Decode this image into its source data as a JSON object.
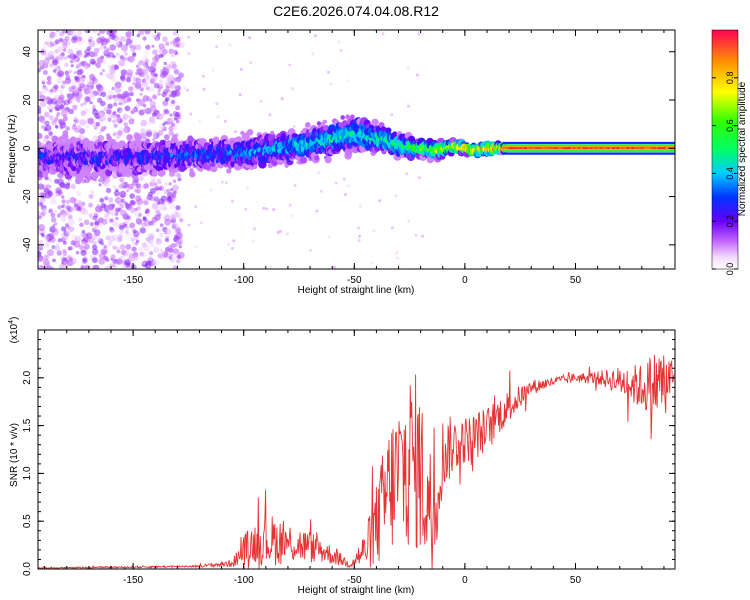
{
  "title": "C2E6.2026.074.04.08.R12",
  "chart_data": [
    {
      "type": "heatmap",
      "name": "spectrogram",
      "xlabel": "Height of straight line (km)",
      "ylabel": "Frequency (Hz)",
      "xlim": [
        -193,
        95
      ],
      "ylim": [
        -50,
        49
      ],
      "xticks": [
        -150,
        -100,
        -50,
        0,
        50
      ],
      "yticks": [
        -40,
        -20,
        0,
        20,
        40
      ],
      "colorbar": {
        "label": "Normalized spectral amplitude",
        "range": [
          0,
          1
        ],
        "ticks": [
          0.0,
          0.2,
          0.4,
          0.6,
          0.8
        ],
        "tick_labels": [
          "0.0",
          "0.2",
          "0.4",
          "0.6",
          "0.8"
        ]
      },
      "trend": {
        "x": [
          -193,
          -150,
          -130,
          -100,
          -75,
          -50,
          -38,
          -28,
          -20,
          -12,
          -5,
          0,
          5,
          10,
          17,
          50,
          95
        ],
        "center_hz": [
          -4,
          -4,
          -3,
          -2,
          1,
          6,
          4,
          1,
          0,
          -1,
          1,
          0,
          -1,
          0,
          0,
          0,
          0
        ],
        "spread_hz": [
          7,
          7,
          6,
          6,
          6,
          7,
          5,
          4,
          3,
          3,
          2,
          2,
          2,
          2,
          1.5,
          1.5,
          1.5
        ],
        "amplitude": [
          0.22,
          0.24,
          0.28,
          0.33,
          0.4,
          0.45,
          0.48,
          0.55,
          0.6,
          0.7,
          0.78,
          0.82,
          0.85,
          0.88,
          0.92,
          0.96,
          0.98
        ]
      },
      "noise_region_x": [
        -193,
        -128
      ]
    },
    {
      "type": "line",
      "name": "snr",
      "xlabel": "Height of straight line (km)",
      "ylabel": "SNR (10 * v/v)",
      "yscale_label": "(x10",
      "yscale_exp": "4",
      "xlim": [
        -193,
        95
      ],
      "ylim": [
        0,
        2.5
      ],
      "xticks": [
        -150,
        -100,
        -50,
        0,
        50
      ],
      "yticks": [
        0.0,
        0.5,
        1.0,
        1.5,
        2.0
      ],
      "ytick_labels": [
        "0.0",
        "0.5",
        "1.0",
        "1.5",
        "2.0"
      ],
      "series": [
        {
          "name": "SNR",
          "color": "#e63232",
          "x": [
            -193,
            -150,
            -120,
            -105,
            -100,
            -95,
            -88,
            -80,
            -72,
            -65,
            -58,
            -52,
            -45,
            -40,
            -35,
            -30,
            -25,
            -21,
            -18,
            -14,
            -10,
            -5,
            0,
            5,
            10,
            15,
            20,
            25,
            30,
            40,
            50,
            60,
            70,
            80,
            88,
            95
          ],
          "value": [
            0.01,
            0.02,
            0.03,
            0.06,
            0.2,
            0.28,
            0.3,
            0.28,
            0.24,
            0.2,
            0.12,
            0.05,
            0.2,
            0.45,
            0.8,
            1.0,
            1.15,
            1.1,
            0.8,
            0.6,
            1.2,
            1.3,
            1.35,
            1.4,
            1.45,
            1.6,
            1.7,
            1.8,
            1.9,
            1.96,
            2.0,
            2.0,
            1.97,
            1.9,
            1.95,
            2.0
          ],
          "noise": [
            0.005,
            0.01,
            0.01,
            0.04,
            0.16,
            0.22,
            0.28,
            0.22,
            0.18,
            0.14,
            0.08,
            0.04,
            0.2,
            0.45,
            0.7,
            0.8,
            0.95,
            0.95,
            0.75,
            0.55,
            0.4,
            0.3,
            0.25,
            0.25,
            0.25,
            0.2,
            0.18,
            0.12,
            0.08,
            0.05,
            0.05,
            0.07,
            0.15,
            0.25,
            0.4,
            0.2
          ]
        }
      ]
    }
  ]
}
